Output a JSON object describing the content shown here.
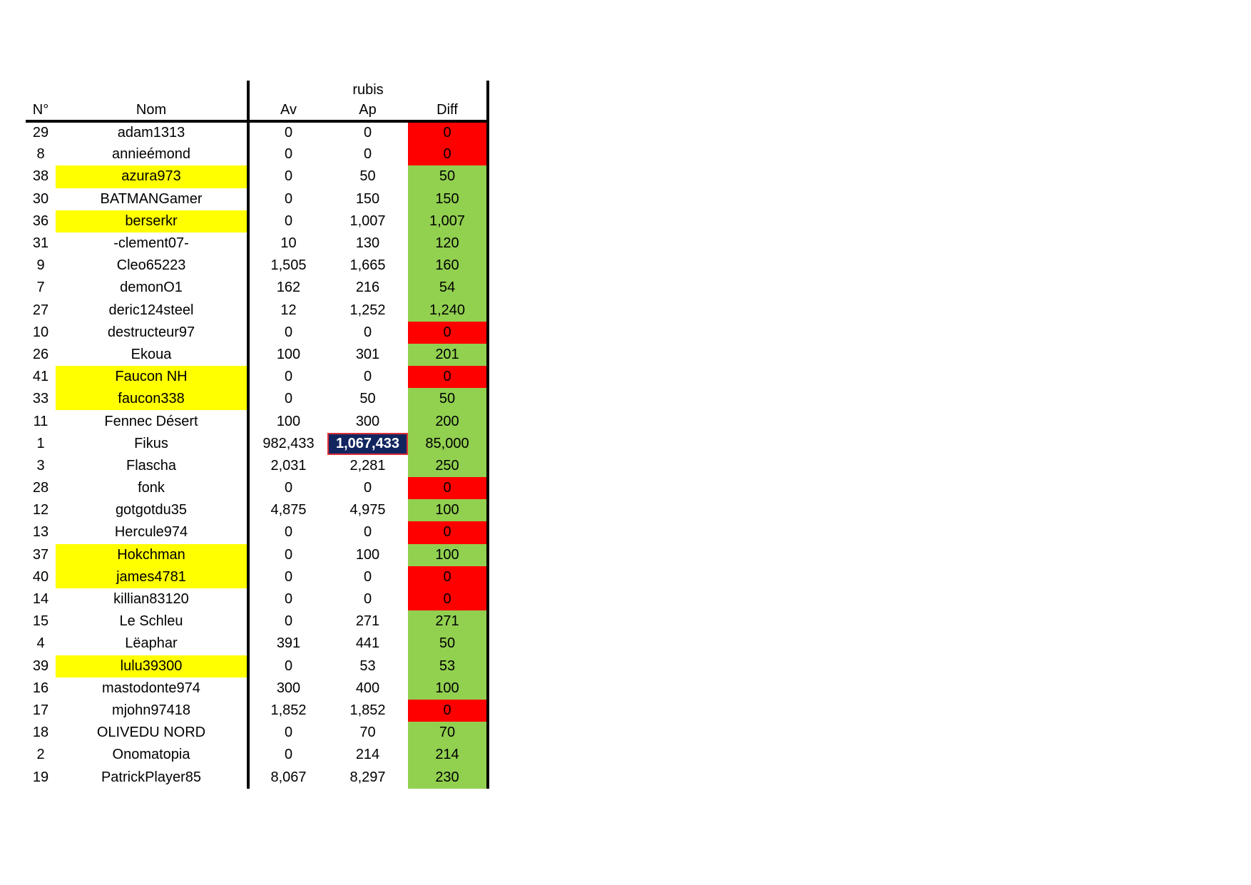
{
  "sheet": {
    "group_header": "rubis",
    "columns": {
      "no": "N°",
      "nom": "Nom",
      "av": "Av",
      "ap": "Ap",
      "diff": "Diff"
    },
    "colors": {
      "highlight_name": "#ffff00",
      "positive_diff": "#92d050",
      "zero_diff": "#ff0000",
      "selected_cell": "#13255f"
    },
    "rows": [
      {
        "no": "29",
        "nom": "adam1313",
        "av": "0",
        "ap": "0",
        "diff": "0",
        "name_highlight": false,
        "diff_status": "zero"
      },
      {
        "no": "8",
        "nom": "annieémond",
        "av": "0",
        "ap": "0",
        "diff": "0",
        "name_highlight": false,
        "diff_status": "zero"
      },
      {
        "no": "38",
        "nom": "azura973",
        "av": "0",
        "ap": "50",
        "diff": "50",
        "name_highlight": true,
        "diff_status": "positive"
      },
      {
        "no": "30",
        "nom": "BATMANGamer",
        "av": "0",
        "ap": "150",
        "diff": "150",
        "name_highlight": false,
        "diff_status": "positive"
      },
      {
        "no": "36",
        "nom": "berserkr",
        "av": "0",
        "ap": "1,007",
        "diff": "1,007",
        "name_highlight": true,
        "diff_status": "positive"
      },
      {
        "no": "31",
        "nom": "-clement07-",
        "av": "10",
        "ap": "130",
        "diff": "120",
        "name_highlight": false,
        "diff_status": "positive"
      },
      {
        "no": "9",
        "nom": "Cleo65223",
        "av": "1,505",
        "ap": "1,665",
        "diff": "160",
        "name_highlight": false,
        "diff_status": "positive"
      },
      {
        "no": "7",
        "nom": "demonO1",
        "av": "162",
        "ap": "216",
        "diff": "54",
        "name_highlight": false,
        "diff_status": "positive"
      },
      {
        "no": "27",
        "nom": "deric124steel",
        "av": "12",
        "ap": "1,252",
        "diff": "1,240",
        "name_highlight": false,
        "diff_status": "positive"
      },
      {
        "no": "10",
        "nom": "destructeur97",
        "av": "0",
        "ap": "0",
        "diff": "0",
        "name_highlight": false,
        "diff_status": "zero"
      },
      {
        "no": "26",
        "nom": "Ekoua",
        "av": "100",
        "ap": "301",
        "diff": "201",
        "name_highlight": false,
        "diff_status": "positive"
      },
      {
        "no": "41",
        "nom": "Faucon NH",
        "av": "0",
        "ap": "0",
        "diff": "0",
        "name_highlight": true,
        "diff_status": "zero"
      },
      {
        "no": "33",
        "nom": "faucon338",
        "av": "0",
        "ap": "50",
        "diff": "50",
        "name_highlight": true,
        "diff_status": "positive"
      },
      {
        "no": "11",
        "nom": "Fennec Désert",
        "av": "100",
        "ap": "300",
        "diff": "200",
        "name_highlight": false,
        "diff_status": "positive"
      },
      {
        "no": "1",
        "nom": "Fikus",
        "av": "982,433",
        "ap": "1,067,433",
        "diff": "85,000",
        "name_highlight": false,
        "diff_status": "positive",
        "selected": true
      },
      {
        "no": "3",
        "nom": "Flascha",
        "av": "2,031",
        "ap": "2,281",
        "diff": "250",
        "name_highlight": false,
        "diff_status": "positive"
      },
      {
        "no": "28",
        "nom": "fonk",
        "av": "0",
        "ap": "0",
        "diff": "0",
        "name_highlight": false,
        "diff_status": "zero"
      },
      {
        "no": "12",
        "nom": "gotgotdu35",
        "av": "4,875",
        "ap": "4,975",
        "diff": "100",
        "name_highlight": false,
        "diff_status": "positive"
      },
      {
        "no": "13",
        "nom": "Hercule974",
        "av": "0",
        "ap": "0",
        "diff": "0",
        "name_highlight": false,
        "diff_status": "zero"
      },
      {
        "no": "37",
        "nom": "Hokchman",
        "av": "0",
        "ap": "100",
        "diff": "100",
        "name_highlight": true,
        "diff_status": "positive"
      },
      {
        "no": "40",
        "nom": "james4781",
        "av": "0",
        "ap": "0",
        "diff": "0",
        "name_highlight": true,
        "diff_status": "zero"
      },
      {
        "no": "14",
        "nom": "killian83120",
        "av": "0",
        "ap": "0",
        "diff": "0",
        "name_highlight": false,
        "diff_status": "zero"
      },
      {
        "no": "15",
        "nom": "Le Schleu",
        "av": "0",
        "ap": "271",
        "diff": "271",
        "name_highlight": false,
        "diff_status": "positive"
      },
      {
        "no": "4",
        "nom": "Lëaphar",
        "av": "391",
        "ap": "441",
        "diff": "50",
        "name_highlight": false,
        "diff_status": "positive"
      },
      {
        "no": "39",
        "nom": "lulu39300",
        "av": "0",
        "ap": "53",
        "diff": "53",
        "name_highlight": true,
        "diff_status": "positive"
      },
      {
        "no": "16",
        "nom": "mastodonte974",
        "av": "300",
        "ap": "400",
        "diff": "100",
        "name_highlight": false,
        "diff_status": "positive"
      },
      {
        "no": "17",
        "nom": "mjohn97418",
        "av": "1,852",
        "ap": "1,852",
        "diff": "0",
        "name_highlight": false,
        "diff_status": "zero"
      },
      {
        "no": "18",
        "nom": "OLIVEDU NORD",
        "av": "0",
        "ap": "70",
        "diff": "70",
        "name_highlight": false,
        "diff_status": "positive"
      },
      {
        "no": "2",
        "nom": "Onomatopia",
        "av": "0",
        "ap": "214",
        "diff": "214",
        "name_highlight": false,
        "diff_status": "positive"
      },
      {
        "no": "19",
        "nom": "PatrickPlayer85",
        "av": "8,067",
        "ap": "8,297",
        "diff": "230",
        "name_highlight": false,
        "diff_status": "positive"
      }
    ]
  }
}
